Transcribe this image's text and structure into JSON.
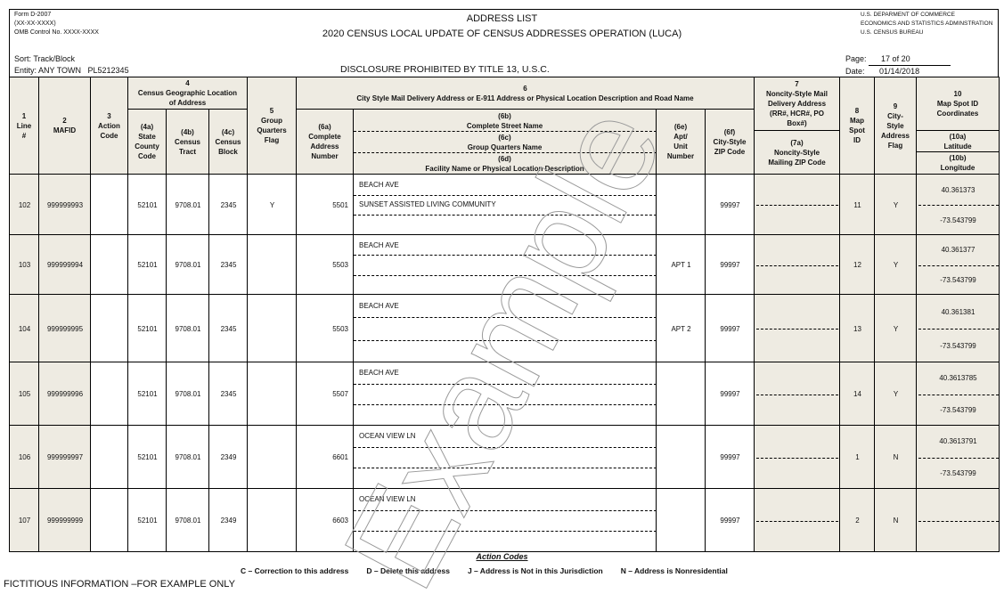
{
  "header": {
    "form_number": "Form D-2007",
    "form_date": "(XX-XX-XXXX)",
    "omb": "OMB Control No. XXXX-XXXX",
    "title": "ADDRESS LIST",
    "subtitle": "2020 CENSUS LOCAL UPDATE OF CENSUS ADDRESSES OPERATION (LUCA)",
    "agency": [
      "U.S. DEPARMENT OF COMMERCE",
      "ECONOMICS AND STATISTICS ADMINSTRATION",
      "U.S. CENSUS BUREAU"
    ],
    "sort": "Sort: Track/Block",
    "entity": "Entity: ANY TOWN   PL5212345",
    "disclosure": "DISCLOSURE PROHIBITED BY TITLE 13, U.S.C.",
    "page_label": "Page:",
    "page_value": "17 of 20",
    "date_label": "Date:",
    "date_value": "01/14/2018"
  },
  "columns": {
    "c1": "1\nLine\n#",
    "c2": "2\nMAFID",
    "c3": "3\nAction\nCode",
    "c4": "4\nCensus Geographic Location\nof Address",
    "c4a": "(4a)\nState\nCounty\nCode",
    "c4b": "(4b)\nCensus\nTract",
    "c4c": "(4c)\nCensus\nBlock",
    "c5": "5\nGroup\nQuarters\nFlag",
    "c6": "6\nCity Style Mail Delivery Address or E-911 Address or Physical Location Description and Road Name",
    "c6a": "(6a)\nComplete\nAddress\nNumber",
    "c6b": "(6b)\nComplete Street Name",
    "c6c": "(6c)\nGroup Quarters Name",
    "c6d": "(6d)\nFacility Name or Physical Location Description",
    "c6e": "(6e)\nApt/\nUnit\nNumber",
    "c6f": "(6f)\nCity-Style\nZIP Code",
    "c7": "7\nNoncity-Style Mail\nDelivery Address\n(RR#, HCR#, PO\nBox#)",
    "c7a": "(7a)\nNoncity-Style\nMailing ZIP Code",
    "c8": "8\nMap\nSpot\nID",
    "c9": "9\nCity-\nStyle\nAddress\nFlag",
    "c10": "10\nMap Spot ID\nCoordinates",
    "c10a": "(10a)\nLatitude",
    "c10b": "(10b)\nLongitude"
  },
  "rows": [
    {
      "line": "102",
      "mafid": "999999993",
      "action": "",
      "county": "52101",
      "tract": "9708.01",
      "block": "2345",
      "gq": "Y",
      "number": "5501",
      "street": "BEACH AVE",
      "gq_name": "SUNSET ASSISTED LIVING COMMUNITY",
      "facility": "",
      "apt": "",
      "zip": "99997",
      "noncity": "",
      "map_spot": "11",
      "city_flag": "Y",
      "lat": "40.361373",
      "lon": "-73.543799"
    },
    {
      "line": "103",
      "mafid": "999999994",
      "action": "",
      "county": "52101",
      "tract": "9708.01",
      "block": "2345",
      "gq": "",
      "number": "5503",
      "street": "BEACH AVE",
      "gq_name": "",
      "facility": "",
      "apt": "APT 1",
      "zip": "99997",
      "noncity": "",
      "map_spot": "12",
      "city_flag": "Y",
      "lat": "40.361377",
      "lon": "-73.543799"
    },
    {
      "line": "104",
      "mafid": "999999995",
      "action": "",
      "county": "52101",
      "tract": "9708.01",
      "block": "2345",
      "gq": "",
      "number": "5503",
      "street": "BEACH AVE",
      "gq_name": "",
      "facility": "",
      "apt": "APT 2",
      "zip": "99997",
      "noncity": "",
      "map_spot": "13",
      "city_flag": "Y",
      "lat": "40.361381",
      "lon": "-73.543799"
    },
    {
      "line": "105",
      "mafid": "999999996",
      "action": "",
      "county": "52101",
      "tract": "9708.01",
      "block": "2345",
      "gq": "",
      "number": "5507",
      "street": "BEACH AVE",
      "gq_name": "",
      "facility": "",
      "apt": "",
      "zip": "99997",
      "noncity": "",
      "map_spot": "14",
      "city_flag": "Y",
      "lat": "40.3613785",
      "lon": "-73.543799"
    },
    {
      "line": "106",
      "mafid": "999999997",
      "action": "",
      "county": "52101",
      "tract": "9708.01",
      "block": "2349",
      "gq": "",
      "number": "6601",
      "street": "OCEAN VIEW LN",
      "gq_name": "",
      "facility": "",
      "apt": "",
      "zip": "99997",
      "noncity": "",
      "map_spot": "1",
      "city_flag": "N",
      "lat": "40.3613791",
      "lon": "-73.543799"
    },
    {
      "line": "107",
      "mafid": "999999999",
      "action": "",
      "county": "52101",
      "tract": "9708.01",
      "block": "2349",
      "gq": "",
      "number": "6603",
      "street": "OCEAN VIEW LN",
      "gq_name": "",
      "facility": "",
      "apt": "",
      "zip": "99997",
      "noncity": "",
      "map_spot": "2",
      "city_flag": "N",
      "lat": "",
      "lon": ""
    }
  ],
  "footer": {
    "action_codes_title": "Action Codes",
    "codes": [
      "C – Correction to this address",
      "D – Delete this address",
      "J – Address is Not in this Jurisdiction",
      "N –  Address is Nonresidential"
    ],
    "fictitious": "FICTITIOUS INFORMATION –FOR EXAMPLE ONLY"
  },
  "watermark": "Example",
  "colors": {
    "shade": "#eeebe2",
    "watermark": "#9a9a9a"
  }
}
